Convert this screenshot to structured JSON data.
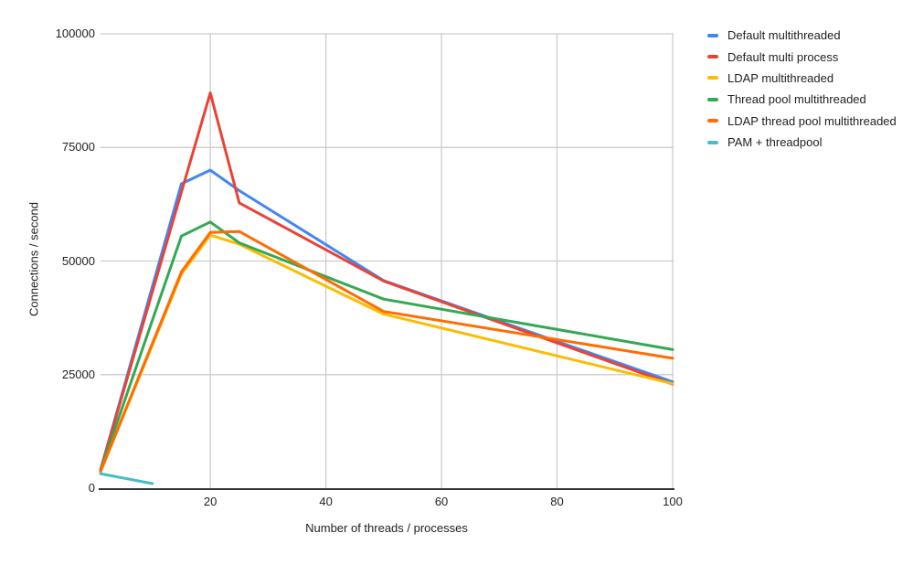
{
  "chart_data": {
    "type": "line",
    "title": "",
    "xlabel": "Number of threads / processes",
    "ylabel": "Connections / second",
    "xlim": [
      1,
      100
    ],
    "ylim": [
      0,
      100000
    ],
    "x_ticks": [
      20,
      40,
      60,
      80,
      100
    ],
    "y_ticks": [
      0,
      25000,
      50000,
      75000,
      100000
    ],
    "grid": true,
    "legend_position": "right",
    "marker": "none",
    "series": [
      {
        "name": "Default multithreaded",
        "color": "#4285F4",
        "points": [
          [
            1,
            4000
          ],
          [
            15,
            67000
          ],
          [
            20,
            70000
          ],
          [
            25,
            65500
          ],
          [
            50,
            45700
          ],
          [
            100,
            23400
          ]
        ]
      },
      {
        "name": "Default multi process",
        "color": "#EA4335",
        "points": [
          [
            1,
            4000
          ],
          [
            20,
            87000
          ],
          [
            25,
            62800
          ],
          [
            50,
            45600
          ],
          [
            100,
            22900
          ]
        ]
      },
      {
        "name": "LDAP multithreaded",
        "color": "#FBBC04",
        "points": [
          [
            1,
            3600
          ],
          [
            15,
            47100
          ],
          [
            20,
            55700
          ],
          [
            25,
            53700
          ],
          [
            50,
            38300
          ],
          [
            100,
            23000
          ]
        ]
      },
      {
        "name": "Thread pool multithreaded",
        "color": "#34A853",
        "points": [
          [
            1,
            3900
          ],
          [
            15,
            55500
          ],
          [
            20,
            58600
          ],
          [
            25,
            54000
          ],
          [
            50,
            41600
          ],
          [
            100,
            30500
          ]
        ]
      },
      {
        "name": "LDAP thread pool multithreaded",
        "color": "#FF6D01",
        "points": [
          [
            1,
            3700
          ],
          [
            15,
            47600
          ],
          [
            20,
            56300
          ],
          [
            25,
            56500
          ],
          [
            50,
            38900
          ],
          [
            100,
            28600
          ]
        ]
      },
      {
        "name": "PAM + threadpool",
        "color": "#46BDC6",
        "points": [
          [
            1,
            3200
          ],
          [
            10,
            1000
          ]
        ]
      }
    ],
    "colors": {
      "background": "#ffffff",
      "gridline": "#cccccc",
      "axis_line": "#333333",
      "text": "#1f1f1f"
    }
  }
}
